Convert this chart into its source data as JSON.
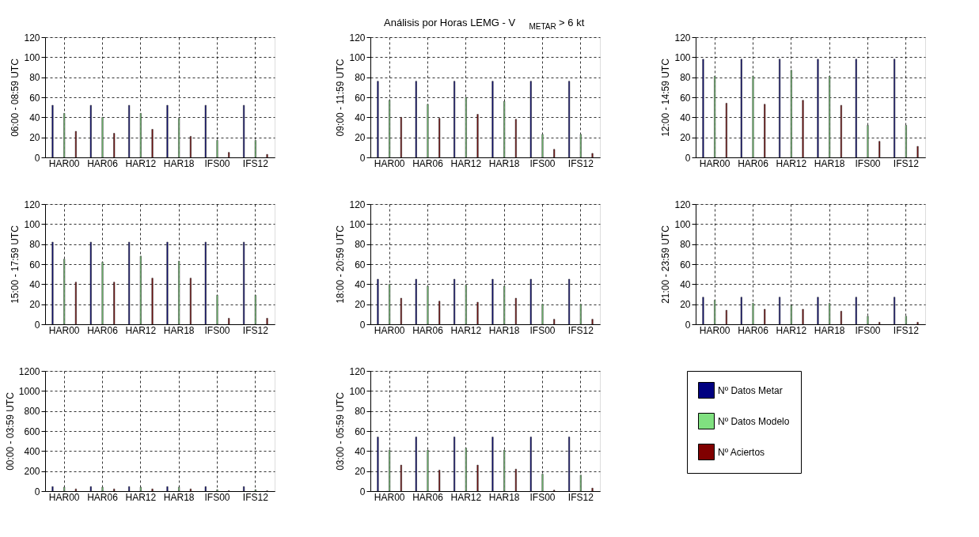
{
  "chart_data": [
    {
      "type": "bar",
      "ylabel": "06:00 - 08:59   UTC",
      "categories": [
        "HAR00",
        "HAR06",
        "HAR12",
        "HAR18",
        "IFS00",
        "IFS12"
      ],
      "ylim": [
        0,
        120
      ],
      "yticks": [
        0,
        20,
        40,
        60,
        80,
        100,
        120
      ],
      "grid": true,
      "legend": false,
      "series": [
        {
          "color": "#000080",
          "values": [
            52,
            52,
            52,
            52,
            52,
            52
          ]
        },
        {
          "color": "#80e080",
          "values": [
            44,
            40,
            44,
            39,
            17,
            17
          ]
        },
        {
          "color": "#800000",
          "values": [
            26,
            24,
            28,
            21,
            5,
            3
          ]
        }
      ]
    },
    {
      "type": "bar",
      "title": "Análisis por Horas LEMG - V$_{METAR}$ > 6 kt",
      "ylabel": "09:00 - 11:59   UTC",
      "categories": [
        "HAR00",
        "HAR06",
        "HAR12",
        "HAR18",
        "IFS00",
        "IFS12"
      ],
      "ylim": [
        0,
        120
      ],
      "yticks": [
        0,
        20,
        40,
        60,
        80,
        100,
        120
      ],
      "grid": true,
      "legend": false,
      "series": [
        {
          "color": "#000080",
          "values": [
            76,
            76,
            76,
            76,
            76,
            76
          ]
        },
        {
          "color": "#80e080",
          "values": [
            57,
            53,
            60,
            56,
            23,
            23
          ]
        },
        {
          "color": "#800000",
          "values": [
            40,
            39,
            43,
            38,
            8,
            4
          ]
        }
      ]
    },
    {
      "type": "bar",
      "ylabel": "12:00 - 14:59   UTC",
      "categories": [
        "HAR00",
        "HAR06",
        "HAR12",
        "HAR18",
        "IFS00",
        "IFS12"
      ],
      "ylim": [
        0,
        120
      ],
      "yticks": [
        0,
        20,
        40,
        60,
        80,
        100,
        120
      ],
      "grid": true,
      "legend": false,
      "series": [
        {
          "color": "#000080",
          "values": [
            98,
            98,
            98,
            98,
            98,
            98
          ]
        },
        {
          "color": "#80e080",
          "values": [
            81,
            81,
            87,
            81,
            32,
            32
          ]
        },
        {
          "color": "#800000",
          "values": [
            54,
            53,
            57,
            52,
            16,
            11
          ]
        }
      ]
    },
    {
      "type": "bar",
      "ylabel": "15:00 - 17:59   UTC",
      "categories": [
        "HAR00",
        "HAR06",
        "HAR12",
        "HAR18",
        "IFS00",
        "IFS12"
      ],
      "ylim": [
        0,
        120
      ],
      "yticks": [
        0,
        20,
        40,
        60,
        80,
        100,
        120
      ],
      "grid": true,
      "legend": false,
      "series": [
        {
          "color": "#000080",
          "values": [
            82,
            82,
            82,
            82,
            82,
            82
          ]
        },
        {
          "color": "#80e080",
          "values": [
            65,
            62,
            68,
            63,
            29,
            29
          ]
        },
        {
          "color": "#800000",
          "values": [
            42,
            42,
            46,
            46,
            6,
            6
          ]
        }
      ]
    },
    {
      "type": "bar",
      "ylabel": "18:00 - 20:59   UTC",
      "categories": [
        "HAR00",
        "HAR06",
        "HAR12",
        "HAR18",
        "IFS00",
        "IFS12"
      ],
      "ylim": [
        0,
        120
      ],
      "yticks": [
        0,
        20,
        40,
        60,
        80,
        100,
        120
      ],
      "grid": true,
      "legend": false,
      "series": [
        {
          "color": "#000080",
          "values": [
            45,
            45,
            45,
            45,
            45,
            45
          ]
        },
        {
          "color": "#80e080",
          "values": [
            40,
            38,
            39,
            38,
            20,
            20
          ]
        },
        {
          "color": "#800000",
          "values": [
            26,
            23,
            22,
            26,
            5,
            5
          ]
        }
      ]
    },
    {
      "type": "bar",
      "ylabel": "21:00 - 23:59   UTC",
      "categories": [
        "HAR00",
        "HAR06",
        "HAR12",
        "HAR18",
        "IFS00",
        "IFS12"
      ],
      "ylim": [
        0,
        120
      ],
      "yticks": [
        0,
        20,
        40,
        60,
        80,
        100,
        120
      ],
      "grid": true,
      "legend": false,
      "series": [
        {
          "color": "#000080",
          "values": [
            27,
            27,
            27,
            27,
            27,
            27
          ]
        },
        {
          "color": "#80e080",
          "values": [
            24,
            21,
            19,
            21,
            8,
            8
          ]
        },
        {
          "color": "#800000",
          "values": [
            14,
            15,
            15,
            13,
            2,
            2
          ]
        }
      ]
    },
    {
      "type": "bar",
      "ylabel": "00:00 - 03:59   UTC",
      "categories": [
        "HAR00",
        "HAR06",
        "HAR12",
        "HAR18",
        "IFS00",
        "IFS12"
      ],
      "ylim": [
        0,
        1200
      ],
      "yticks": [
        0,
        200,
        400,
        600,
        800,
        1000,
        1200
      ],
      "grid": true,
      "legend": false,
      "series": [
        {
          "color": "#000080",
          "values": [
            45,
            45,
            45,
            45,
            45,
            45
          ]
        },
        {
          "color": "#80e080",
          "values": [
            40,
            40,
            40,
            40,
            15,
            15
          ]
        },
        {
          "color": "#800000",
          "values": [
            22,
            22,
            22,
            22,
            3,
            3
          ]
        }
      ]
    },
    {
      "type": "bar",
      "ylabel": "03:00 - 05:59   UTC",
      "categories": [
        "HAR00",
        "HAR06",
        "HAR12",
        "HAR18",
        "IFS00",
        "IFS12"
      ],
      "ylim": [
        0,
        120
      ],
      "yticks": [
        0,
        20,
        40,
        60,
        80,
        100,
        120
      ],
      "grid": true,
      "legend": "right",
      "series": [
        {
          "name": "Nº Datos Metar",
          "color": "#000080",
          "values": [
            54,
            54,
            54,
            54,
            54,
            54
          ]
        },
        {
          "name": "Nº Datos Modelo",
          "color": "#80e080",
          "values": [
            41,
            41,
            43,
            41,
            17,
            16
          ]
        },
        {
          "name": "Nº Aciertos",
          "color": "#800000",
          "values": [
            26,
            21,
            26,
            22,
            1,
            3
          ]
        }
      ]
    }
  ]
}
